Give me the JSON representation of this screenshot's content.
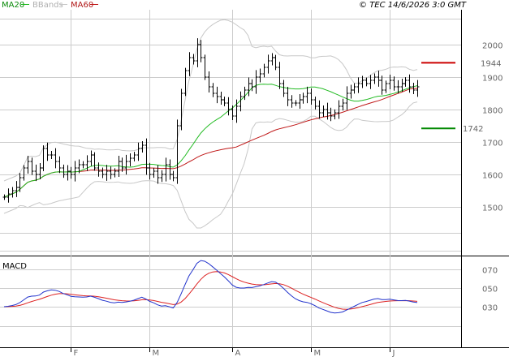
{
  "header": {
    "legend": [
      {
        "label": "MA20",
        "color": "#0a8a0a"
      },
      {
        "label": "BBands",
        "color": "#b0b0b0"
      },
      {
        "label": "MA60",
        "color": "#b01818"
      }
    ],
    "copyright": "© TEC 14/6/2026 3:0 GMT"
  },
  "colors": {
    "price": "#000000",
    "ma20": "#22bb22",
    "ma60": "#c01818",
    "bbands": "#c8c8c8",
    "macd": "#2233cc",
    "signal": "#dd2222",
    "grid": "#cccccc",
    "resistance": "#cc0000",
    "support": "#008800"
  },
  "chart_data": [
    {
      "type": "ohlc",
      "title": "",
      "y_ticks": [
        1500,
        1600,
        1700,
        1800,
        1900,
        2000
      ],
      "ylim": [
        1420,
        2080
      ],
      "x_month_labels": [
        {
          "label": "F",
          "index": 17
        },
        {
          "label": "M",
          "index": 37
        },
        {
          "label": "A",
          "index": 58
        },
        {
          "label": "M",
          "index": 78
        },
        {
          "label": "J",
          "index": 98
        }
      ],
      "n_bars": 106,
      "close": [
        1530,
        1540,
        1550,
        1560,
        1590,
        1620,
        1640,
        1610,
        1600,
        1620,
        1680,
        1660,
        1660,
        1640,
        1620,
        1600,
        1610,
        1600,
        1620,
        1630,
        1630,
        1640,
        1660,
        1620,
        1610,
        1600,
        1610,
        1600,
        1610,
        1640,
        1620,
        1640,
        1650,
        1660,
        1680,
        1690,
        1620,
        1600,
        1610,
        1590,
        1600,
        1630,
        1600,
        1590,
        1750,
        1850,
        1920,
        1960,
        1950,
        2000,
        1960,
        1900,
        1870,
        1850,
        1840,
        1830,
        1820,
        1800,
        1780,
        1810,
        1840,
        1860,
        1880,
        1870,
        1900,
        1910,
        1930,
        1950,
        1960,
        1930,
        1880,
        1850,
        1830,
        1820,
        1820,
        1830,
        1840,
        1850,
        1830,
        1810,
        1790,
        1800,
        1790,
        1780,
        1790,
        1810,
        1820,
        1850,
        1860,
        1870,
        1880,
        1890,
        1880,
        1890,
        1900,
        1890,
        1860,
        1880,
        1890,
        1870,
        1870,
        1880,
        1890,
        1870,
        1860,
        1870
      ],
      "resistance": {
        "value": 1944,
        "label": "1944",
        "color": "#cc0000"
      },
      "support": {
        "value": 1742,
        "label": "1742",
        "color": "#008800"
      }
    },
    {
      "type": "line",
      "title": "MACD",
      "y_ticks": [
        30,
        50,
        70
      ],
      "tick_labels": [
        "030",
        "050",
        "070"
      ],
      "ylim": [
        -5,
        100
      ]
    }
  ]
}
